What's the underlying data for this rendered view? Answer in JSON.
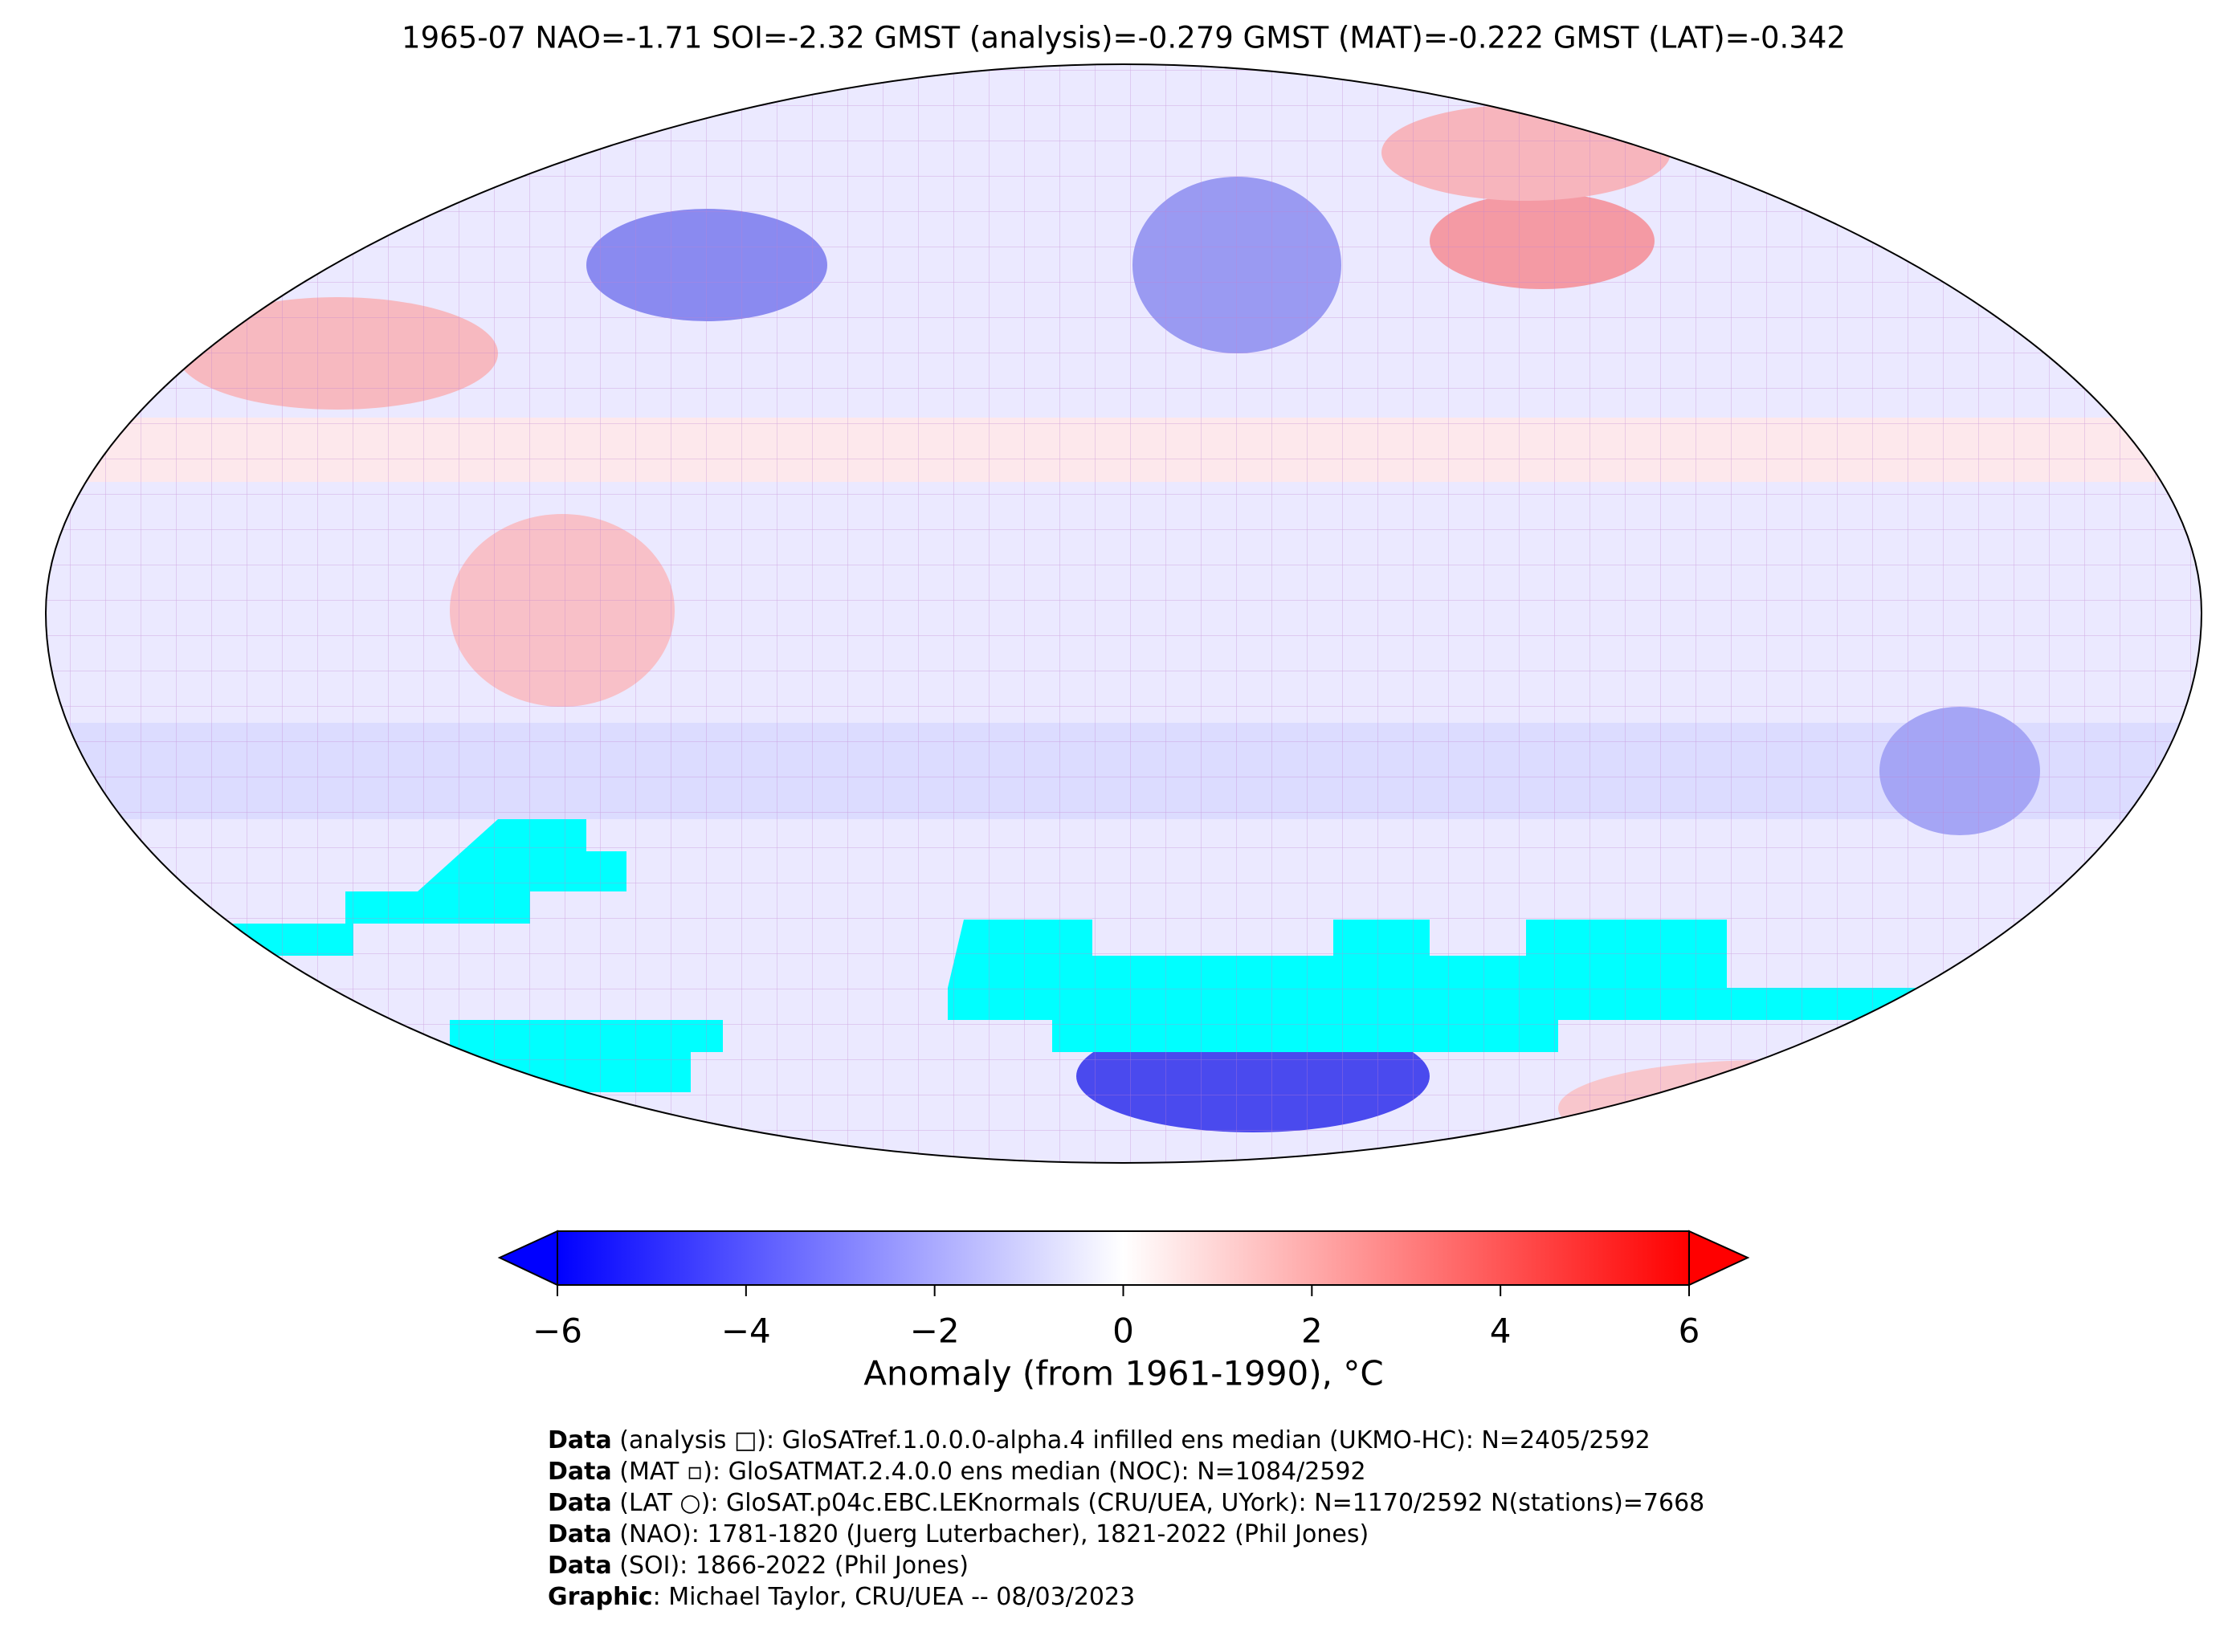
{
  "title": "1965-07 NAO=-1.71 SOI=-2.32 GMST (analysis)=-0.279 GMST (MAT)=-0.222 GMST (LAT)=-0.342",
  "colorbar": {
    "lim": [
      -6,
      6
    ],
    "ticks": [
      {
        "value": -6,
        "label": "−6"
      },
      {
        "value": -4,
        "label": "−4"
      },
      {
        "value": -2,
        "label": "−2"
      },
      0,
      2,
      4,
      6
    ],
    "colors": [
      "#0000ff",
      "#ffffff",
      "#ff0000"
    ],
    "label": "Anomaly (from 1961-1990), °C"
  },
  "credits": [
    {
      "bold": "Data",
      "text": " (analysis □): GloSATref.1.0.0.0-alpha.4 infilled ens median (UKMO-HC): N=2405/2592"
    },
    {
      "bold": "Data",
      "text": " (MAT ▫): GloSATMAT.2.4.0.0 ens median (NOC): N=1084/2592"
    },
    {
      "bold": "Data",
      "text": " (LAT ○): GloSAT.p04c.EBC.LEKnormals (CRU/UEA, UYork): N=1170/2592 N(stations)=7668"
    },
    {
      "bold": "Data",
      "text": " (NAO): 1781-1820 (Juerg Luterbacher), 1821-2022 (Phil Jones)"
    },
    {
      "bold": "Data",
      "text": " (SOI): 1866-2022 (Phil Jones)"
    },
    {
      "bold": "Graphic",
      "text": ": Michael Taylor, CRU/UEA -- 08/03/2023"
    }
  ]
}
